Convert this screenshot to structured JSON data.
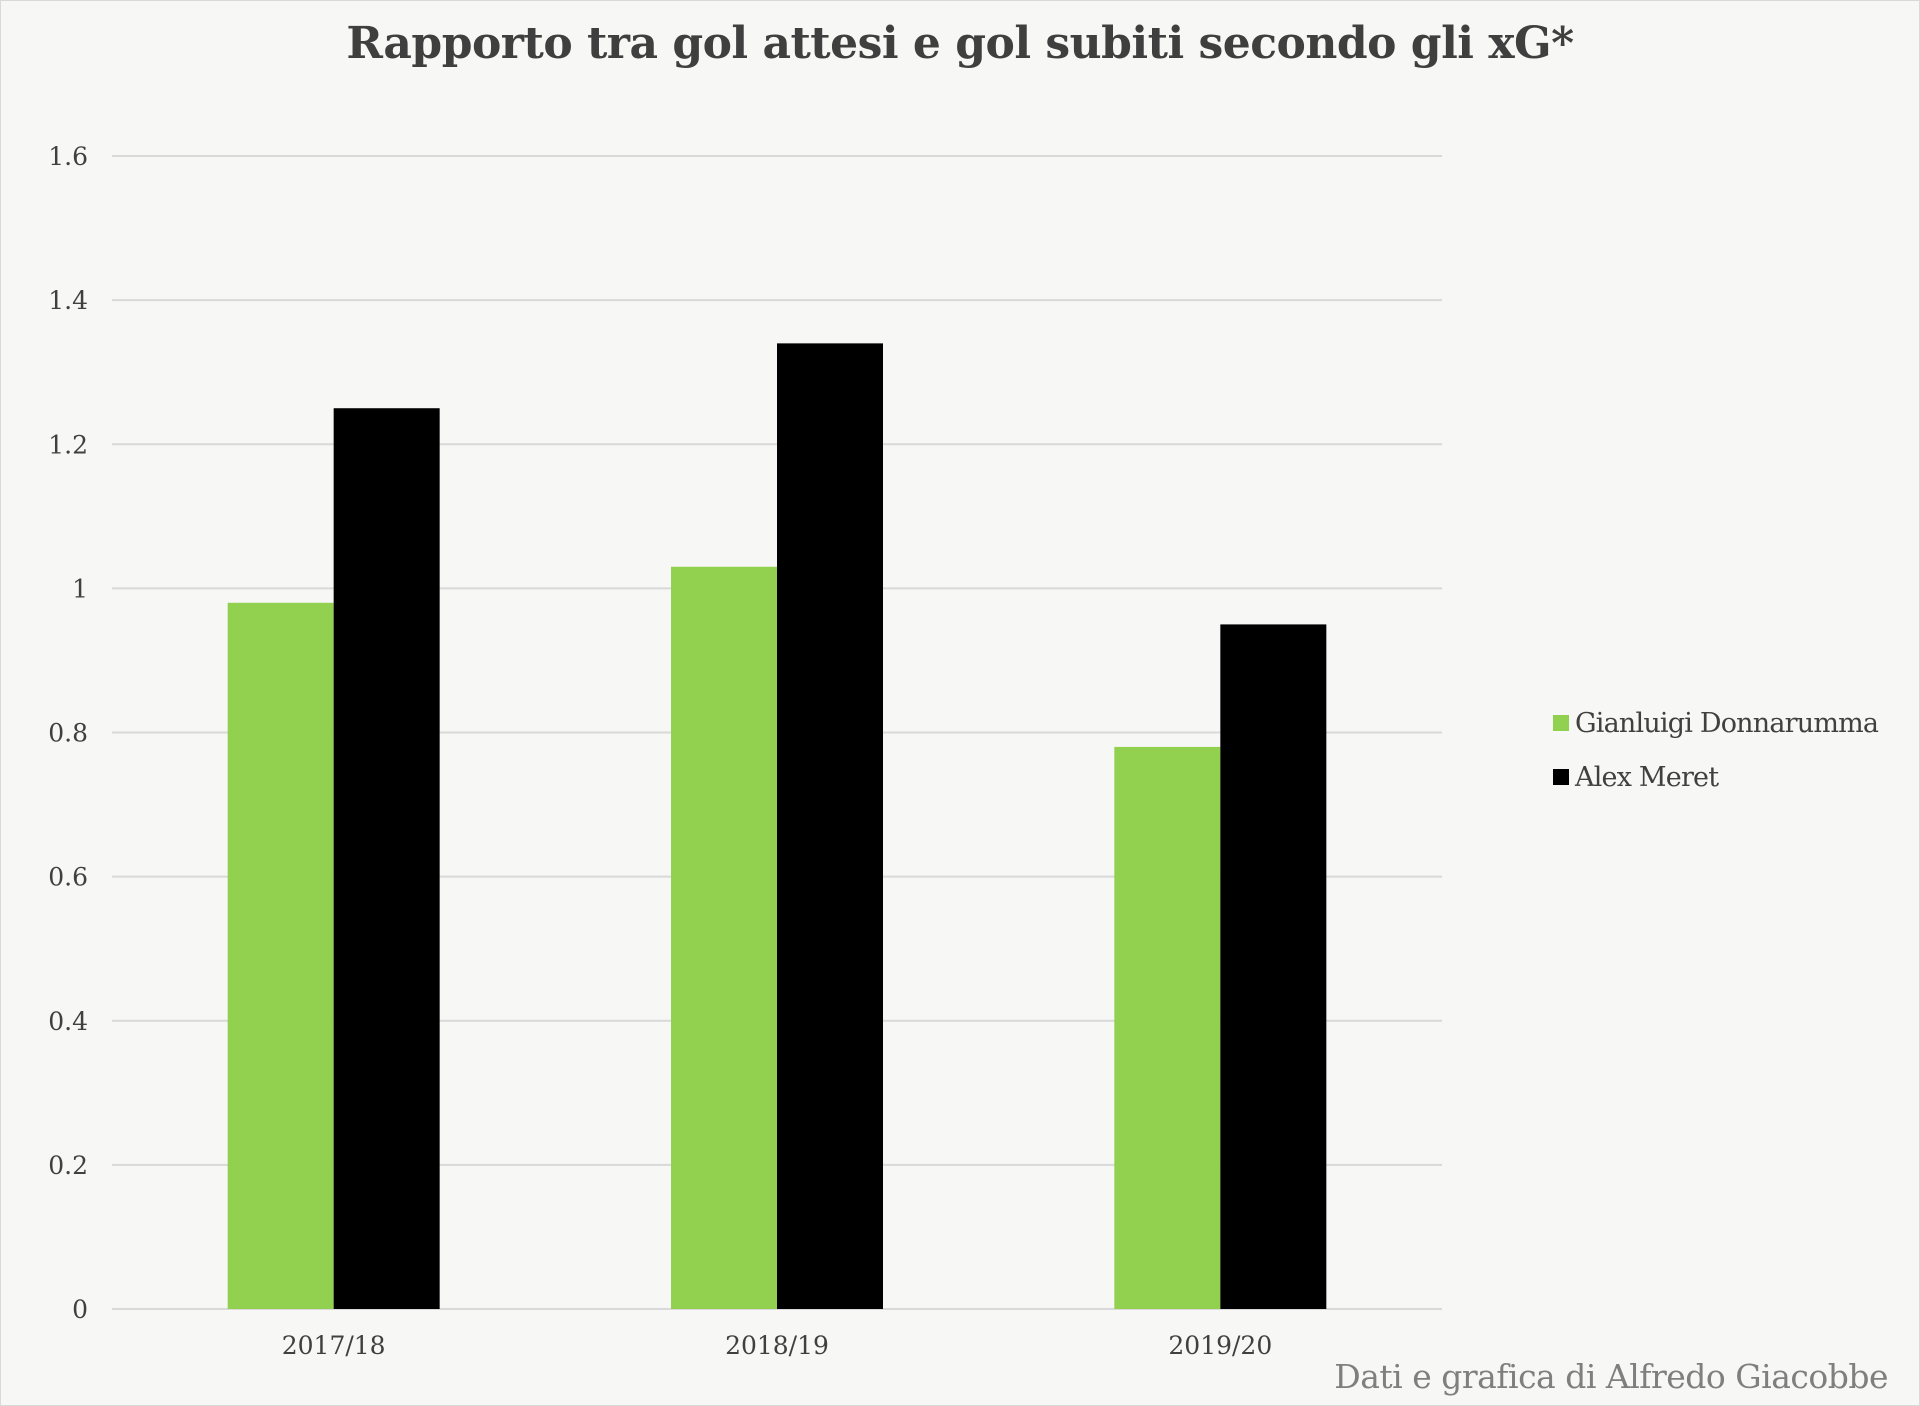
{
  "chart_data": {
    "type": "bar",
    "title": "Rapporto tra gol attesi e gol subiti secondo gli xG*",
    "categories": [
      "2017/18",
      "2018/19",
      "2019/20"
    ],
    "series": [
      {
        "name": "Gianluigi Donnarumma",
        "color": "#92d050",
        "values": [
          0.98,
          1.03,
          0.78
        ]
      },
      {
        "name": "Alex Meret",
        "color": "#000000",
        "values": [
          1.25,
          1.34,
          0.95
        ]
      }
    ],
    "ylim": [
      0,
      1.6
    ],
    "yticks": [
      "0",
      "0.2",
      "0.4",
      "0.6",
      "0.8",
      "1",
      "1.2",
      "1.4",
      "1.6"
    ],
    "grid": true,
    "legend": "right",
    "xlabel": "",
    "ylabel": ""
  },
  "credit": "Dati e grafica di Alfredo Giacobbe"
}
